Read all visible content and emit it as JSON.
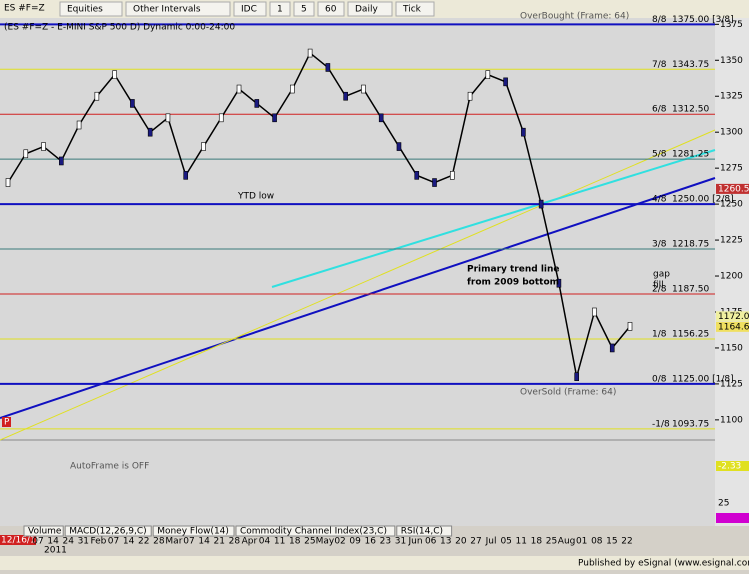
{
  "toolbar": {
    "symbol": "ES #F=Z",
    "buttons": [
      "Equities",
      "Other Intervals",
      "IDC",
      "1",
      "5",
      "60",
      "Daily",
      "Tick"
    ]
  },
  "chart": {
    "title": "(ES #F=Z - E-MINI S&P 500 D) Dynamic 0:00-24:00",
    "ylim": [
      1086,
      1378
    ],
    "yticks": [
      1375,
      1350,
      1325,
      1300,
      1275,
      1250,
      1225,
      1200,
      1175,
      1150,
      1125,
      1100
    ],
    "closes": [
      1265,
      1285,
      1290,
      1280,
      1305,
      1325,
      1340,
      1320,
      1300,
      1310,
      1270,
      1290,
      1310,
      1330,
      1320,
      1310,
      1330,
      1355,
      1345,
      1325,
      1330,
      1310,
      1290,
      1270,
      1265,
      1270,
      1325,
      1340,
      1335,
      1300,
      1250,
      1195,
      1130,
      1175,
      1150,
      1165
    ],
    "levels": [
      {
        "label": "8/8",
        "price_label": "1375.00 [3/8]",
        "value": 1375,
        "color": "#1010c0"
      },
      {
        "label": "7/8",
        "price_label": "1343.75",
        "value": 1343.75,
        "color": "#e0e020"
      },
      {
        "label": "6/8",
        "price_label": "1312.50",
        "value": 1312.5,
        "color": "#d02020"
      },
      {
        "label": "5/8",
        "price_label": "1281.25",
        "value": 1281.25,
        "color": "#3a7a7a"
      },
      {
        "label": "4/8",
        "price_label": "1250.00 [2/8]",
        "value": 1250,
        "color": "#1010c0"
      },
      {
        "label": "3/8",
        "price_label": "1218.75",
        "value": 1218.75,
        "color": "#3a7a7a"
      },
      {
        "label": "2/8",
        "price_label": "1187.50",
        "value": 1187.5,
        "color": "#d02020"
      },
      {
        "label": "1/8",
        "price_label": "1156.25",
        "value": 1156.25,
        "color": "#e0e020"
      },
      {
        "label": "0/8",
        "price_label": "1125.00 [1/8]",
        "value": 1125,
        "color": "#1010c0"
      },
      {
        "label": "-1/8",
        "price_label": "1093.75",
        "value": 1093.75,
        "color": "#e0e020"
      }
    ],
    "price_boxes": [
      {
        "label": "1260.58",
        "value": 1260.58,
        "color": "#c03030"
      },
      {
        "label": "1172.00",
        "value": 1172,
        "color": "#f0f0a0"
      },
      {
        "label": "1164.67",
        "value": 1164.67,
        "color": "#f0e060"
      }
    ],
    "annotations": {
      "ytd_low": "YTD low",
      "trend": "Primary trend line",
      "trend2": "from 2009 bottom",
      "gap": "gap",
      "fill": "fill",
      "overbought": "OverBought (Frame: 64)",
      "oversold": "OverSold (Frame: 64)",
      "autoframe": "AutoFrame is OFF",
      "p": "P"
    },
    "macd_labels": [
      "-2.33",
      "25",
      "-39.13"
    ],
    "dates": [
      "07",
      "14",
      "24",
      "31",
      "Feb",
      "07",
      "14",
      "22",
      "28",
      "Mar",
      "07",
      "14",
      "21",
      "28",
      "Apr",
      "04",
      "11",
      "18",
      "25",
      "May",
      "02",
      "09",
      "16",
      "23",
      "31",
      "Jun",
      "06",
      "13",
      "20",
      "27",
      "Jul",
      "05",
      "11",
      "18",
      "25",
      "Aug",
      "01",
      "08",
      "15",
      "22"
    ],
    "start_date": "12/16/10",
    "year": "2011"
  },
  "tabs": [
    "Volume",
    "MACD(12,26,9,C)",
    "Money Flow(14)",
    "Commodity Channel Index(23,C)",
    "RSI(14,C)"
  ],
  "footer": "Published by eSignal (www.esignal.com)"
}
